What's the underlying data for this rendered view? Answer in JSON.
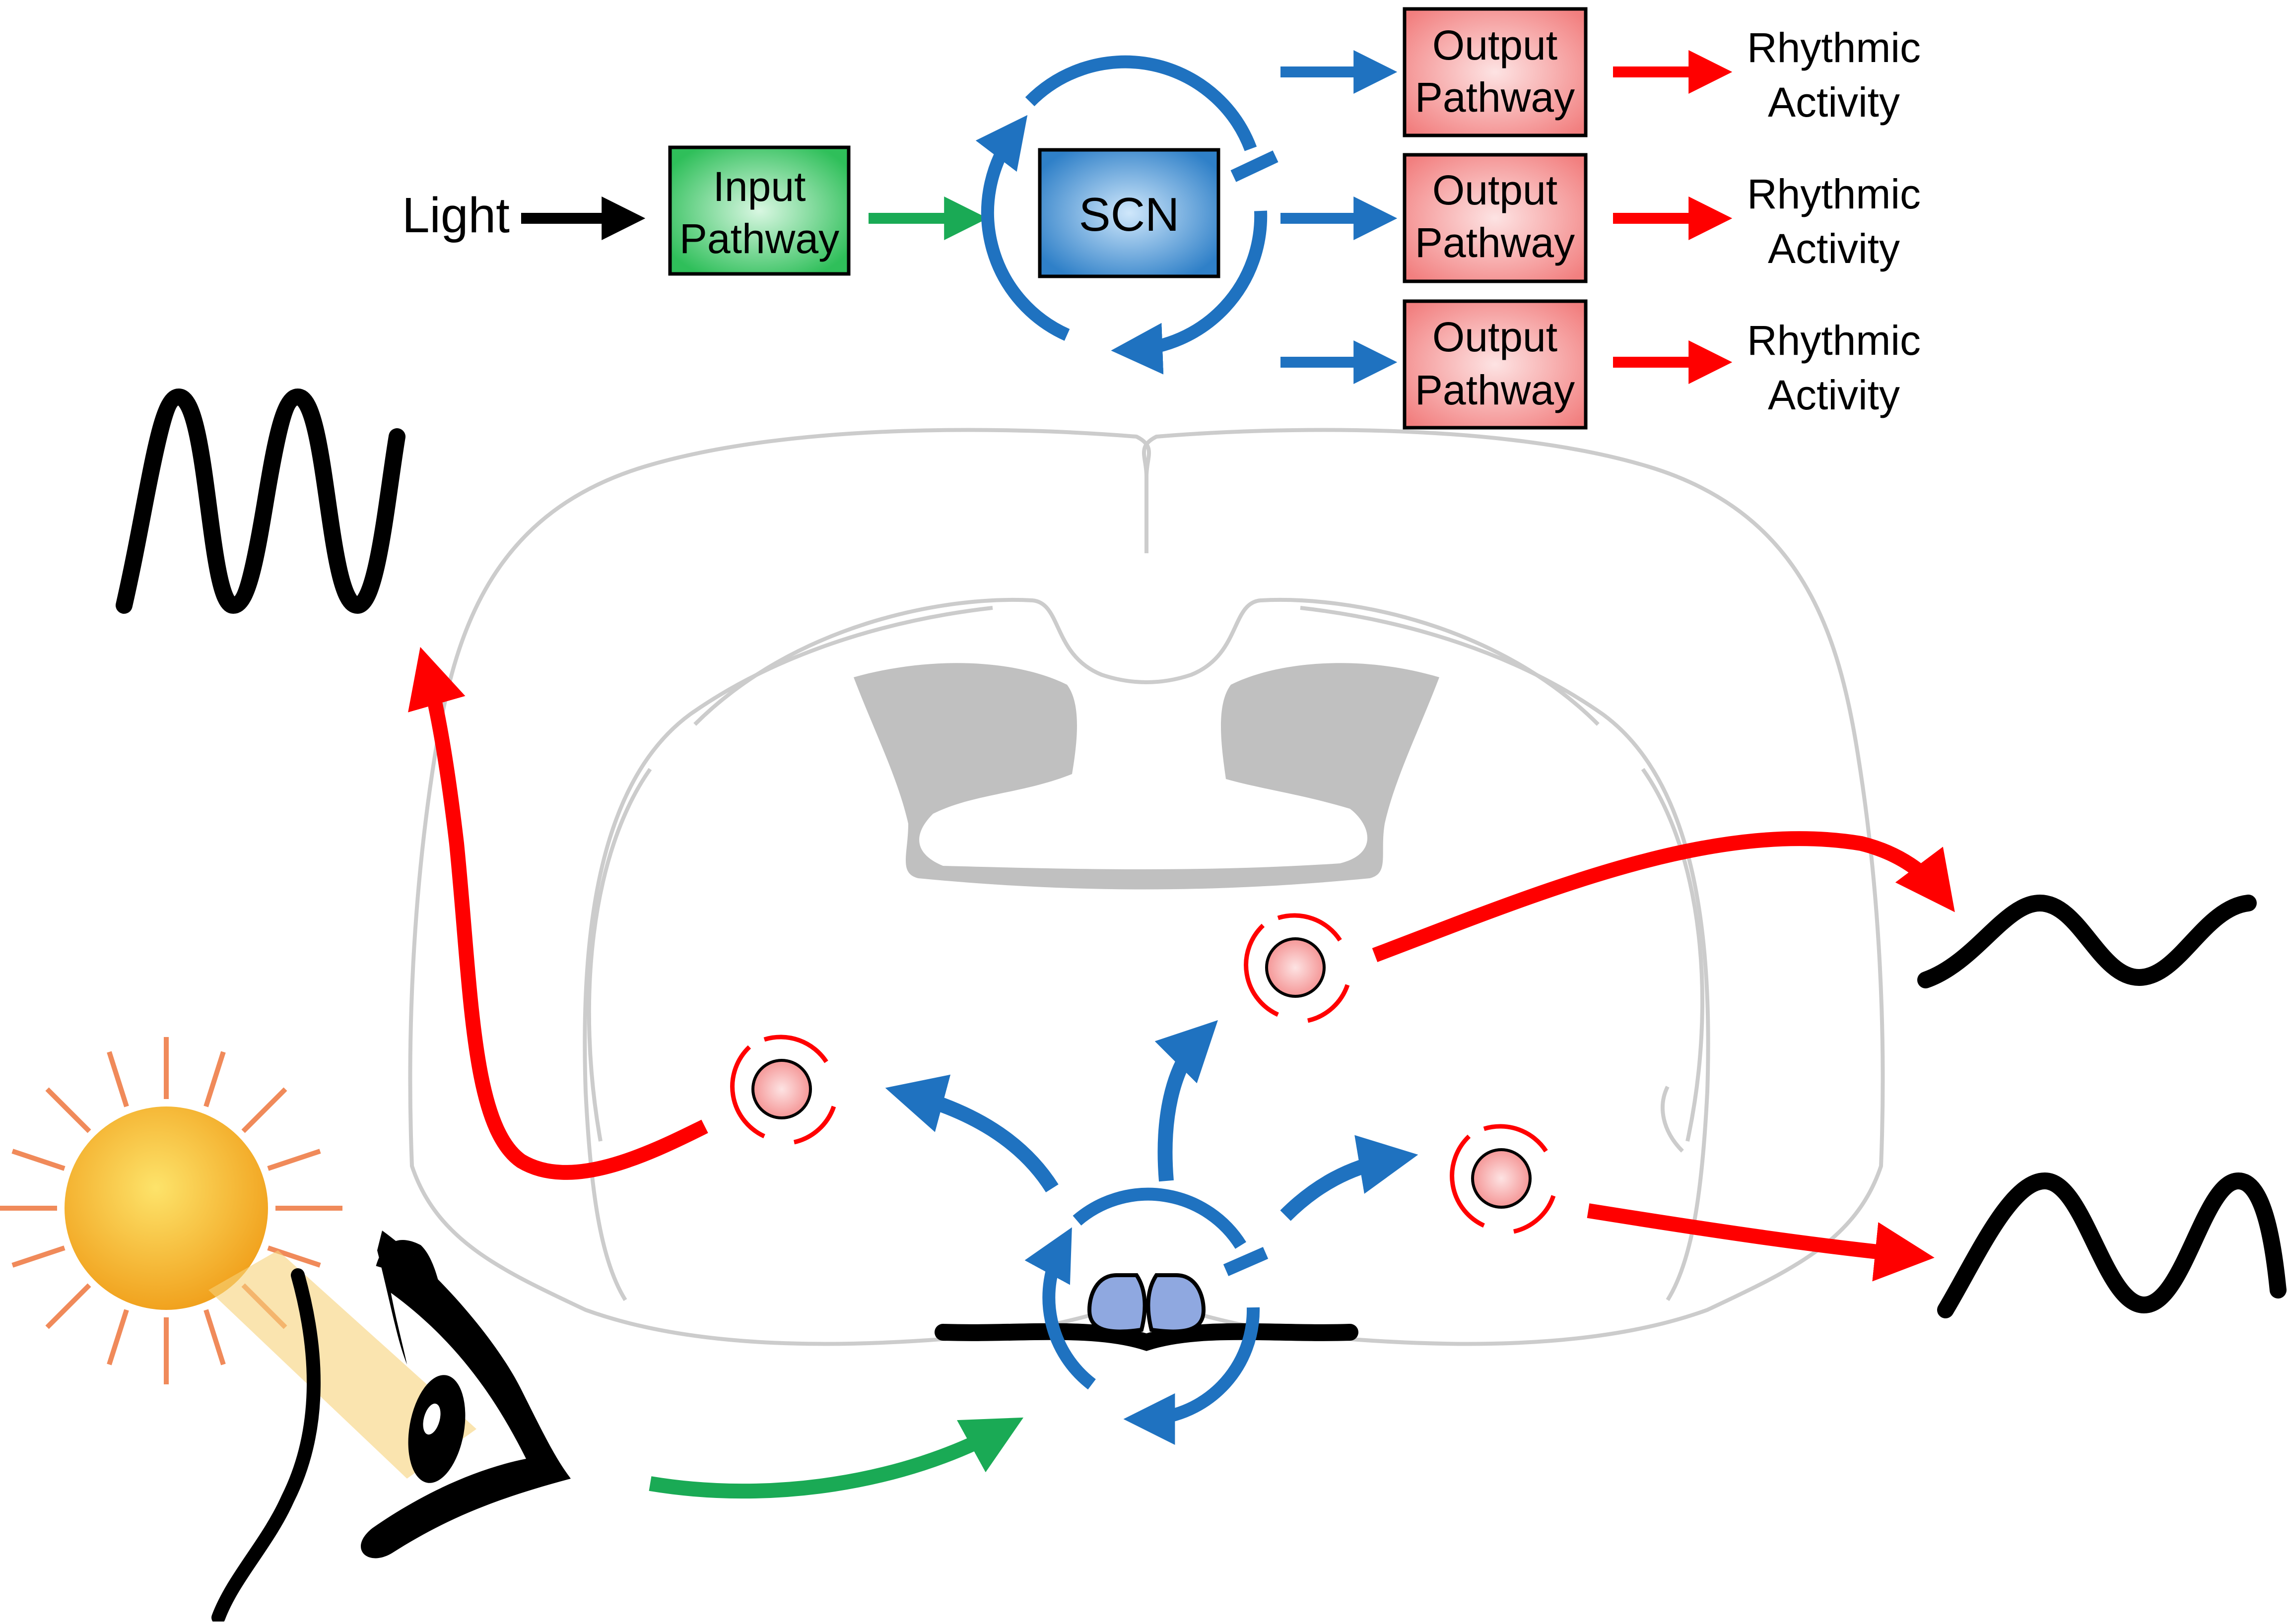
{
  "flow": {
    "light_label": "Light",
    "input_box": {
      "line1": "Input",
      "line2": "Pathway",
      "color": "#2fbf5a"
    },
    "scn_box": {
      "label": "SCN",
      "color": "#2f80c8"
    },
    "outputs": [
      {
        "line1": "Output",
        "line2": "Pathway",
        "activity1": "Rhythmic",
        "activity2": "Activity"
      },
      {
        "line1": "Output",
        "line2": "Pathway",
        "activity1": "Rhythmic",
        "activity2": "Activity"
      },
      {
        "line1": "Output",
        "line2": "Pathway",
        "activity1": "Rhythmic",
        "activity2": "Activity"
      }
    ],
    "output_color": "#f79a9a"
  },
  "colors": {
    "light_arrow": "#000000",
    "input_arrow": "#1aaa55",
    "scn_feedback": "#1f72c0",
    "output_arrow": "#ff0000",
    "brain_outline": "#c8c8c8",
    "ventricle": "#c0c0c0",
    "scn_nuclei": "#8fa8e0",
    "peripheral_oscillator": "#f7a3a3",
    "sun": "#f7b52a",
    "light_beam": "#f6d27a"
  },
  "icons": [
    "sun-icon",
    "eye-icon",
    "brain-section",
    "sine-wave-icon"
  ]
}
